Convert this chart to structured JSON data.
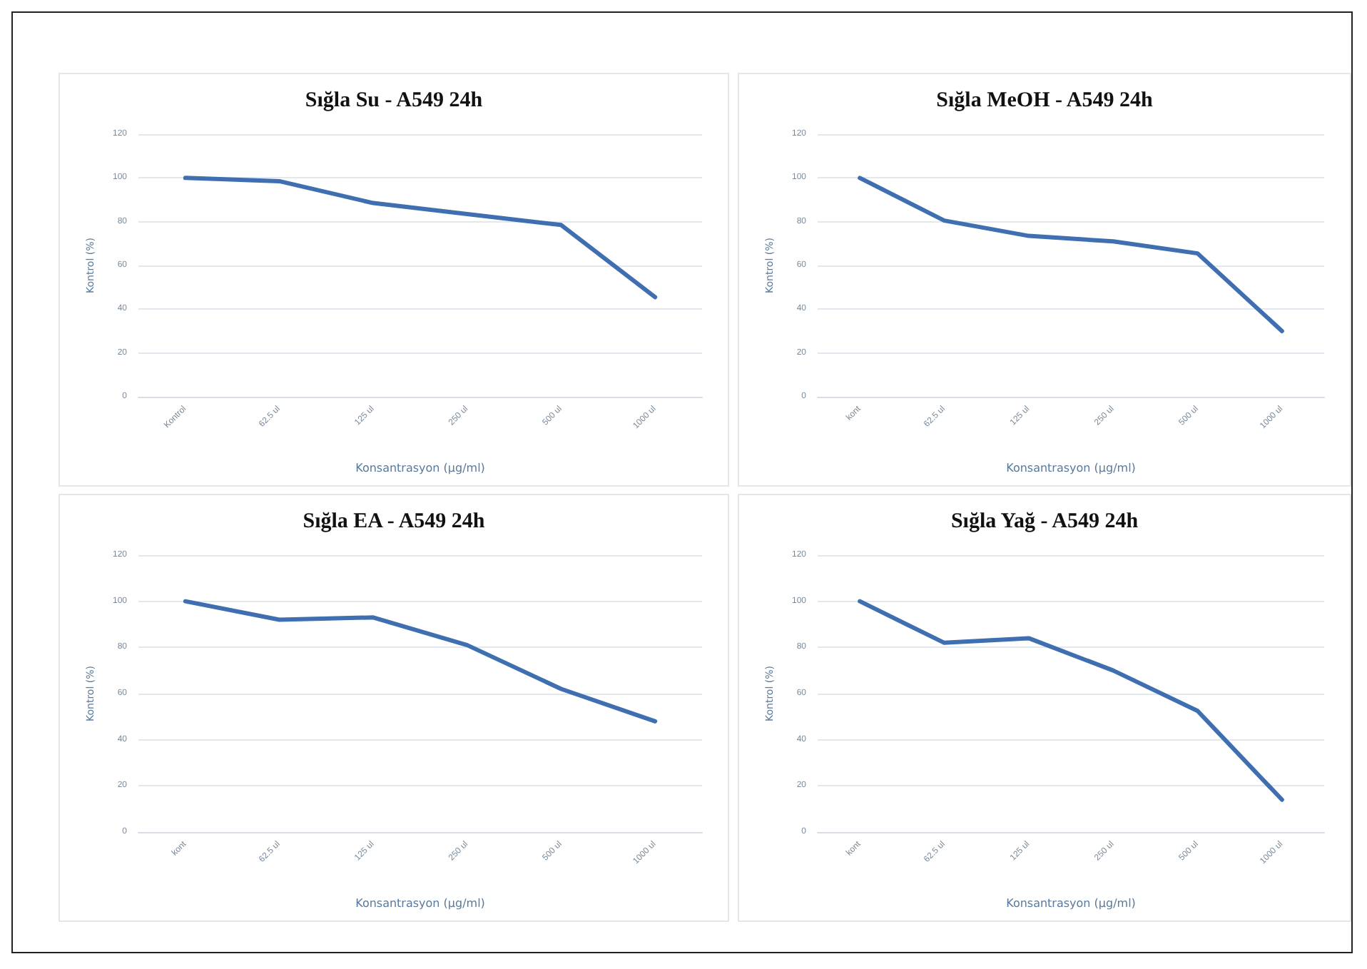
{
  "chart_data": [
    {
      "type": "line",
      "title": "Sığla Su - A549 24h",
      "xlabel": "Konsantrasyon (µg/ml)",
      "ylabel": "Kontrol (%)",
      "categories": [
        "Kontrol",
        "62.5 ul",
        "125 ul",
        "250 ul",
        "500 ul",
        "1000 ul"
      ],
      "series": [
        {
          "color": "#3f6fb0",
          "values": [
            100,
            98.5,
            88.5,
            83.5,
            78.5,
            45.5
          ]
        }
      ],
      "ylim": [
        0,
        120
      ],
      "yticks": [
        0,
        20,
        40,
        60,
        80,
        100,
        120
      ],
      "grid": "y",
      "marker": "none",
      "line_style": "solid"
    },
    {
      "type": "line",
      "title": "Sığla MeOH - A549 24h",
      "xlabel": "Konsantrasyon (µg/ml)",
      "ylabel": "Kontrol (%)",
      "categories": [
        "kont",
        "62.5 ul",
        "125 ul",
        "250 ul",
        "500 ul",
        "1000 ul"
      ],
      "series": [
        {
          "color": "#3f6fb0",
          "values": [
            100,
            80.5,
            73.5,
            71,
            65.5,
            30
          ]
        }
      ],
      "ylim": [
        0,
        120
      ],
      "yticks": [
        0,
        20,
        40,
        60,
        80,
        100,
        120
      ],
      "grid": "y",
      "marker": "none",
      "line_style": "solid"
    },
    {
      "type": "line",
      "title": "Sığla EA - A549 24h",
      "xlabel": "Konsantrasyon (µg/ml)",
      "ylabel": "Kontrol (%)",
      "categories": [
        "kont",
        "62.5 ul",
        "125 ul",
        "250 ul",
        "500 ul",
        "1000 ul"
      ],
      "series": [
        {
          "color": "#3f6fb0",
          "values": [
            100,
            92,
            93,
            81,
            62,
            48
          ]
        }
      ],
      "ylim": [
        0,
        120
      ],
      "yticks": [
        0,
        20,
        40,
        60,
        80,
        100,
        120
      ],
      "grid": "y",
      "marker": "none",
      "line_style": "solid"
    },
    {
      "type": "line",
      "title": "Sığla Yağ - A549 24h",
      "xlabel": "Konsantrasyon (µg/ml)",
      "ylabel": "Kontrol (%)",
      "categories": [
        "kont",
        "62.5 ul",
        "125 ul",
        "250 ul",
        "500 ul",
        "1000 ul"
      ],
      "series": [
        {
          "color": "#3f6fb0",
          "values": [
            100,
            82,
            84,
            70,
            52.5,
            14
          ]
        }
      ],
      "ylim": [
        0,
        120
      ],
      "yticks": [
        0,
        20,
        40,
        60,
        80,
        100,
        120
      ],
      "grid": "y",
      "marker": "none",
      "line_style": "solid"
    }
  ]
}
